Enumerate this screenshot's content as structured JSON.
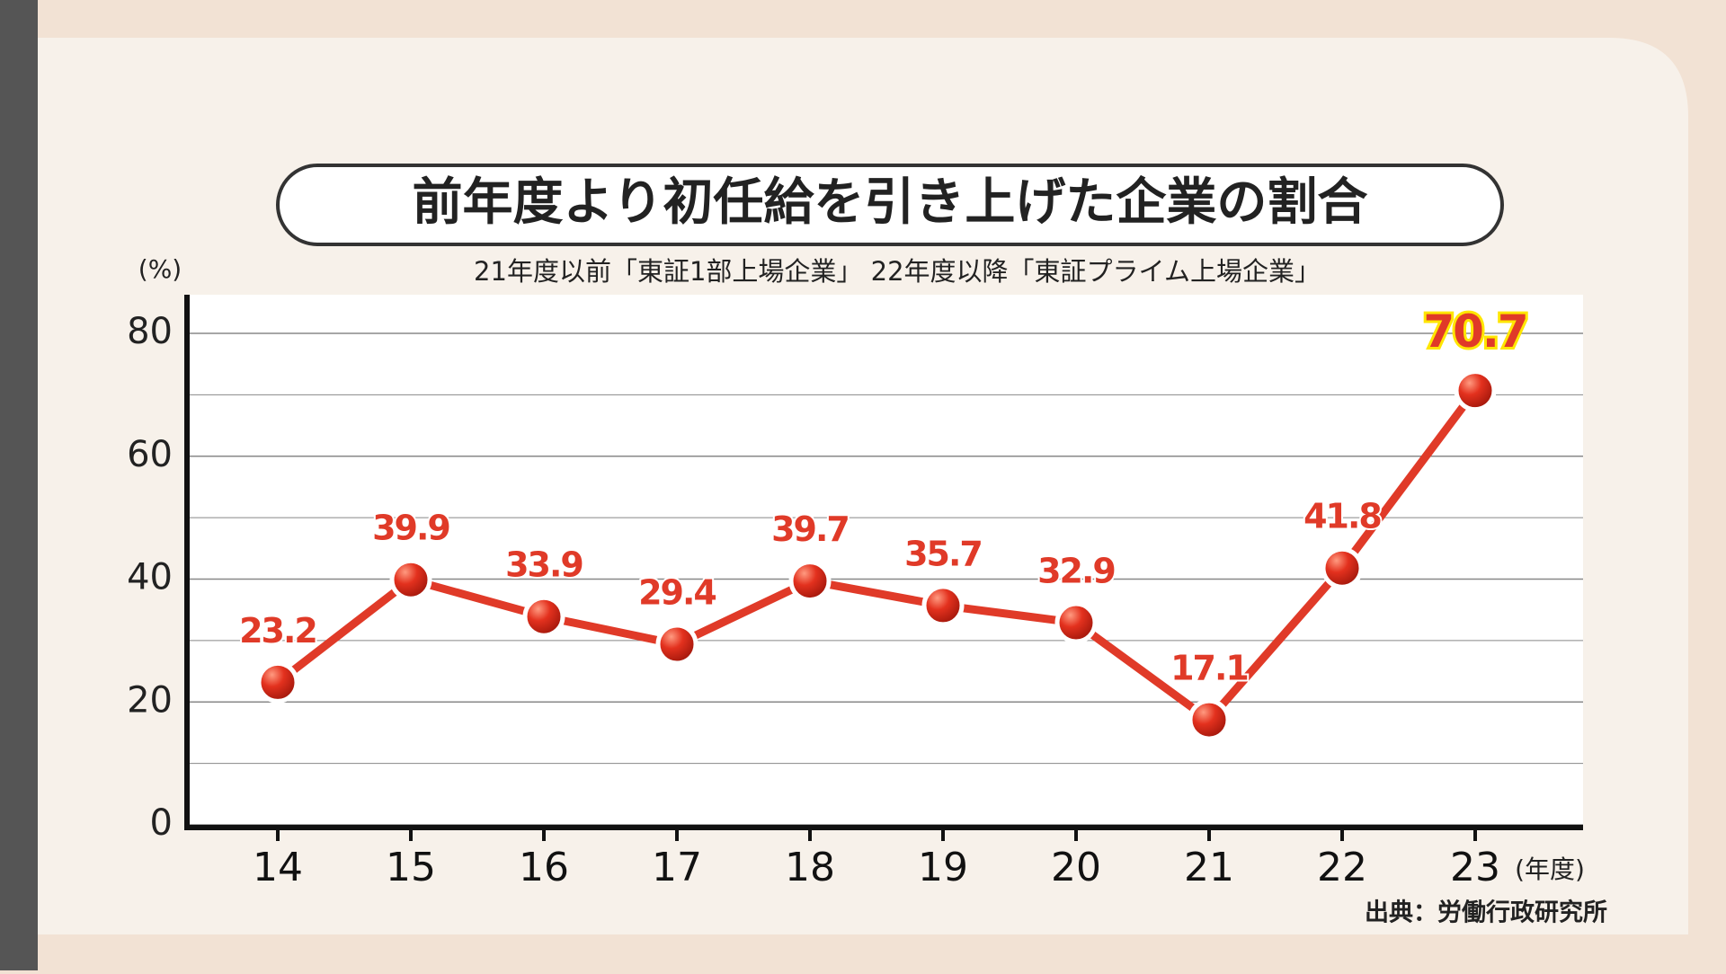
{
  "chart_data": {
    "type": "line",
    "title": "前年度より初任給を引き上げた企業の割合",
    "subtitle": "21年度以前「東証1部上場企業」 22年度以降「東証プライム上場企業」",
    "y_label": "(%)",
    "x_label": "(年度)",
    "source": "出典：労働行政研究所",
    "categories": [
      "14",
      "15",
      "16",
      "17",
      "18",
      "19",
      "20",
      "21",
      "22",
      "23"
    ],
    "series": [
      {
        "name": "割合",
        "color": "#e03a28",
        "values": [
          23.2,
          39.9,
          33.9,
          29.4,
          39.7,
          35.7,
          32.9,
          17.1,
          41.8,
          70.7
        ]
      }
    ],
    "ylim": [
      0,
      86
    ],
    "yticks": [
      0,
      20,
      40,
      60,
      80
    ],
    "minor_yticks": [
      10,
      30,
      50,
      70
    ],
    "grid": true
  }
}
